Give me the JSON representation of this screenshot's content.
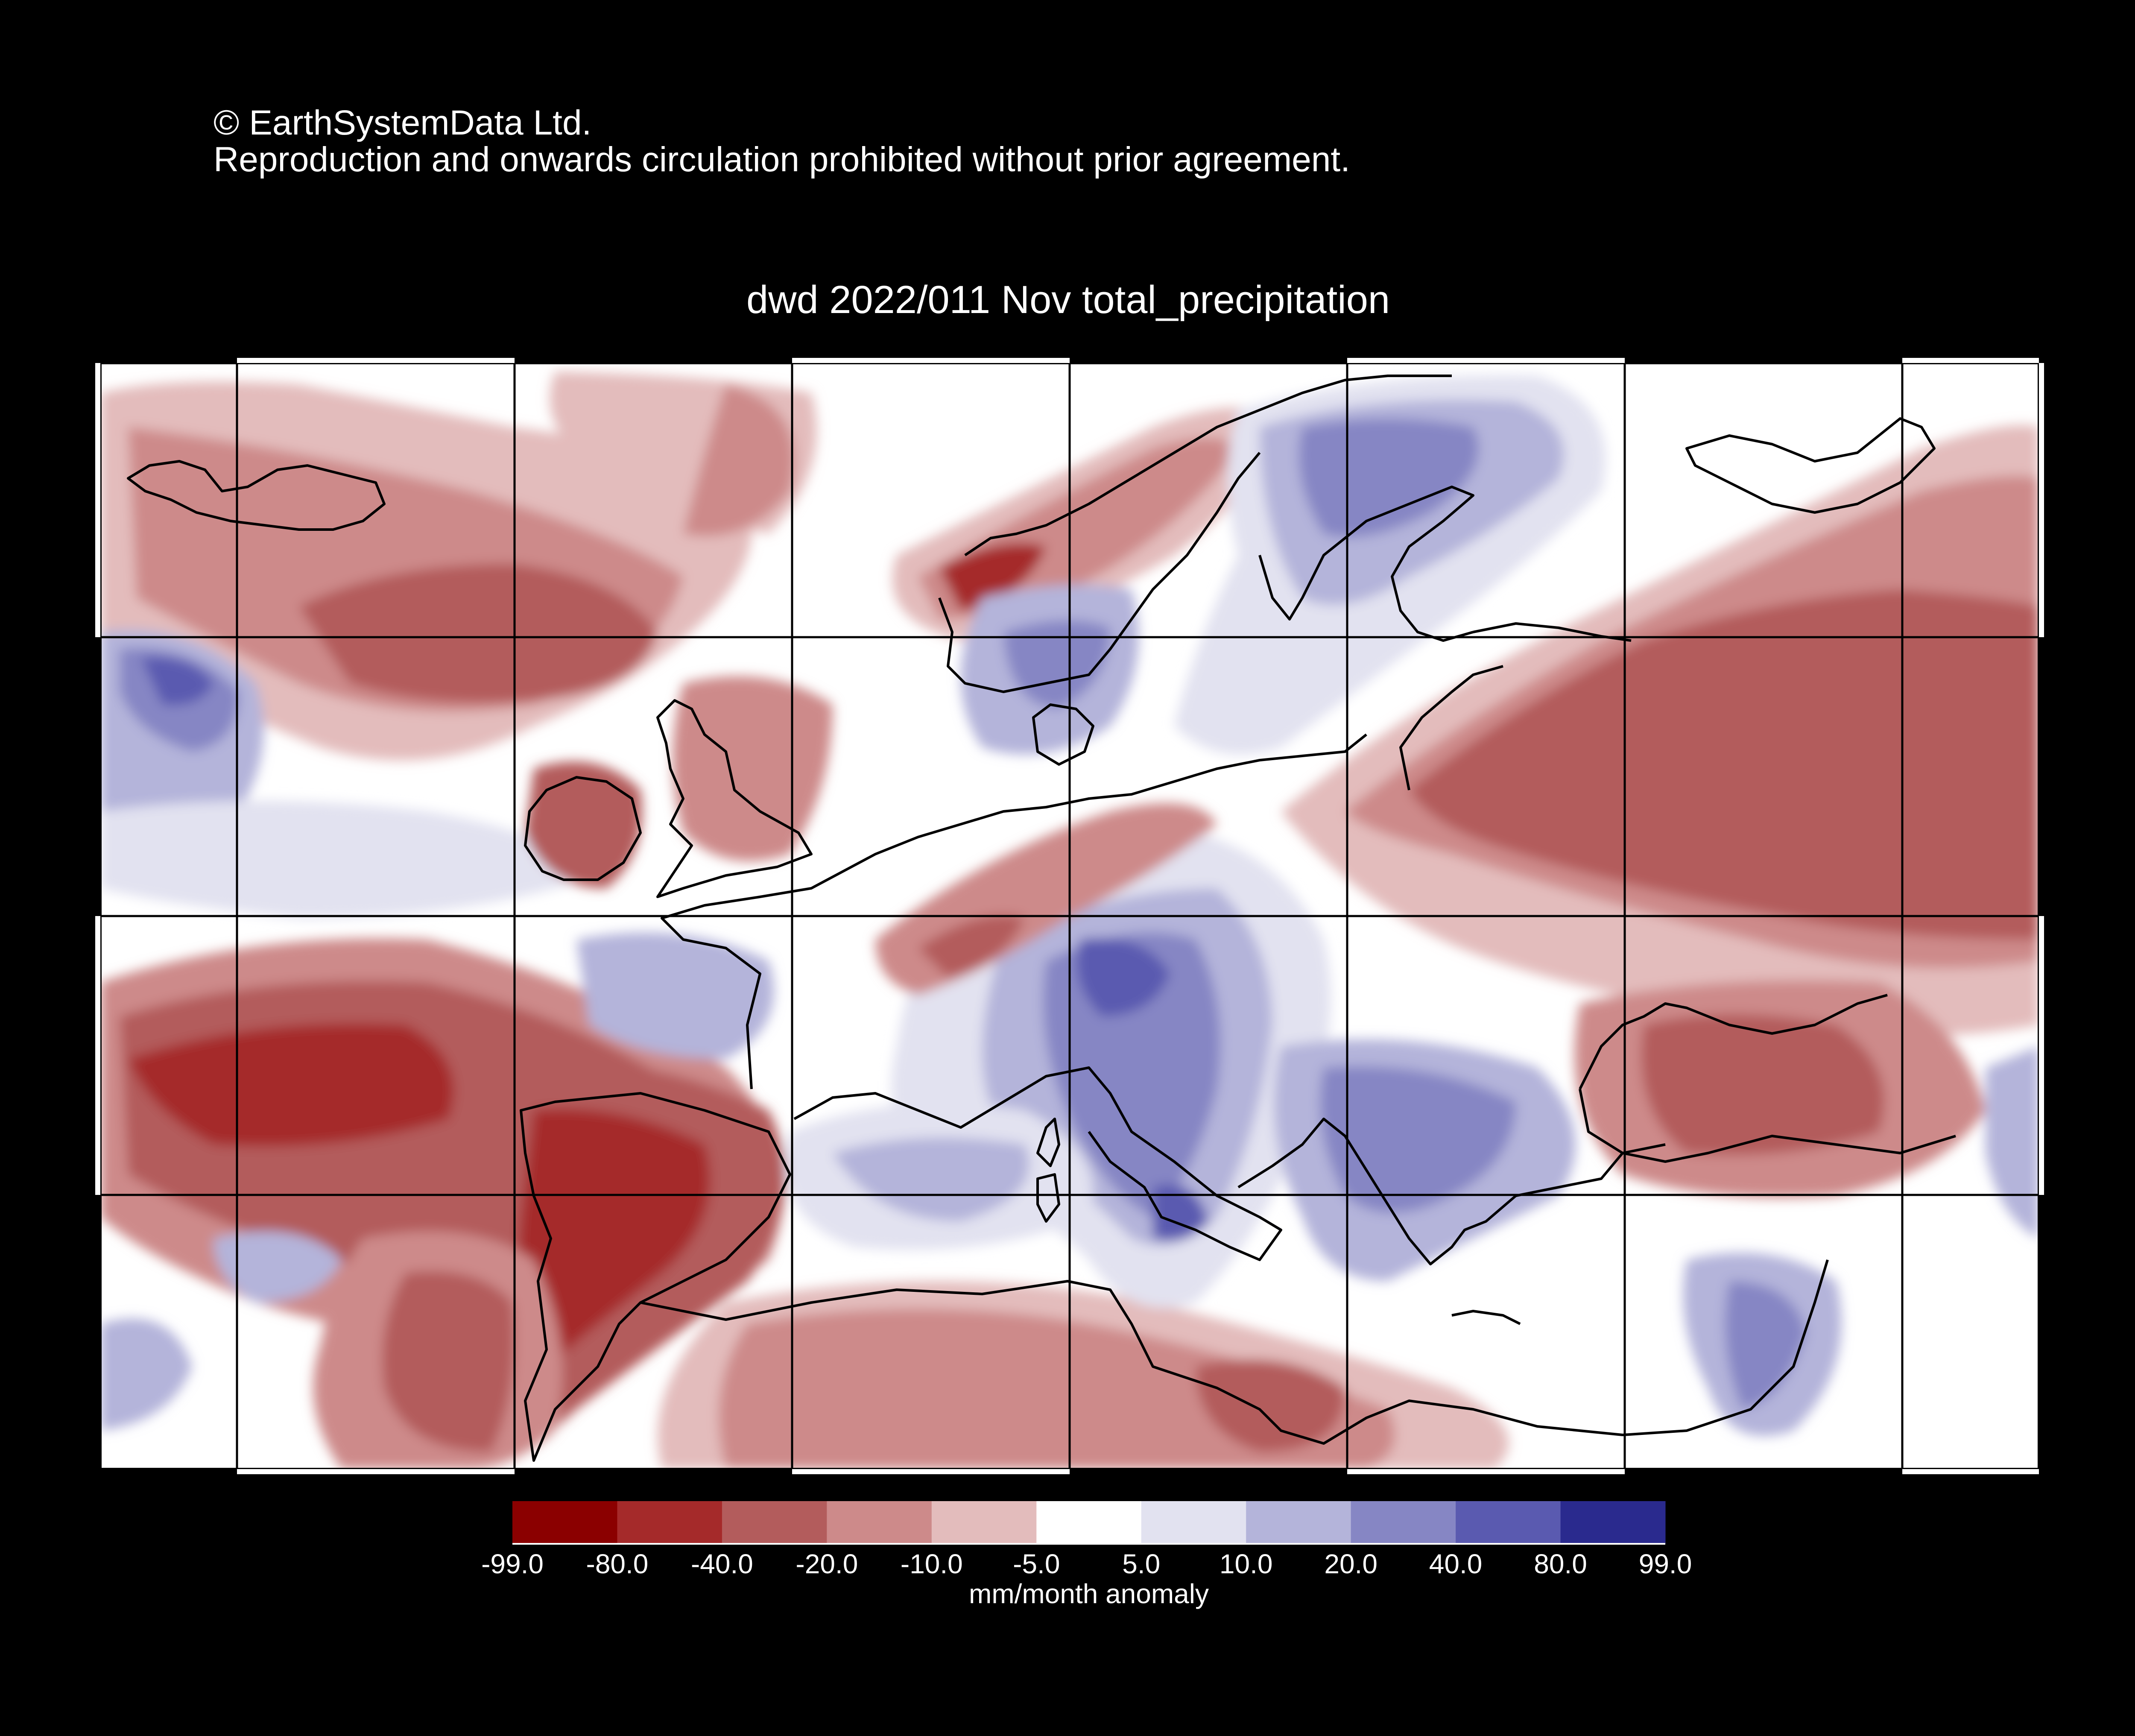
{
  "header": {
    "copyright_line": "© EarthSystemData Ltd.",
    "notice_line": "Reproduction and onwards circulation prohibited without prior agreement."
  },
  "map": {
    "title": "dwd 2022/011 Nov total_precipitation",
    "region": "Europe, North Atlantic and Mediterranean",
    "background_color": "#000000",
    "coastline_color": "#000000",
    "gridline_color": "#000000",
    "frame_color": "#ffffff"
  },
  "legend": {
    "caption": "mm/month anomaly",
    "tick_labels": [
      "-99.0",
      "-80.0",
      "-40.0",
      "-20.0",
      "-10.0",
      "-5.0",
      "5.0",
      "10.0",
      "20.0",
      "40.0",
      "80.0",
      "99.0"
    ],
    "bins": [
      {
        "from": -99.0,
        "to": -80.0,
        "color": "#8b0000"
      },
      {
        "from": -80.0,
        "to": -40.0,
        "color": "#a52a2a"
      },
      {
        "from": -40.0,
        "to": -20.0,
        "color": "#b35c5c"
      },
      {
        "from": -20.0,
        "to": -10.0,
        "color": "#cd8a8a"
      },
      {
        "from": -10.0,
        "to": -5.0,
        "color": "#e3bcbc"
      },
      {
        "from": -5.0,
        "to": 5.0,
        "color": "#ffffff"
      },
      {
        "from": 5.0,
        "to": 10.0,
        "color": "#e2e2f0"
      },
      {
        "from": 10.0,
        "to": 20.0,
        "color": "#b4b4da"
      },
      {
        "from": 20.0,
        "to": 40.0,
        "color": "#8686c4"
      },
      {
        "from": 40.0,
        "to": 80.0,
        "color": "#5a5ab0"
      },
      {
        "from": 80.0,
        "to": 99.0,
        "color": "#2a2a8e"
      }
    ]
  }
}
